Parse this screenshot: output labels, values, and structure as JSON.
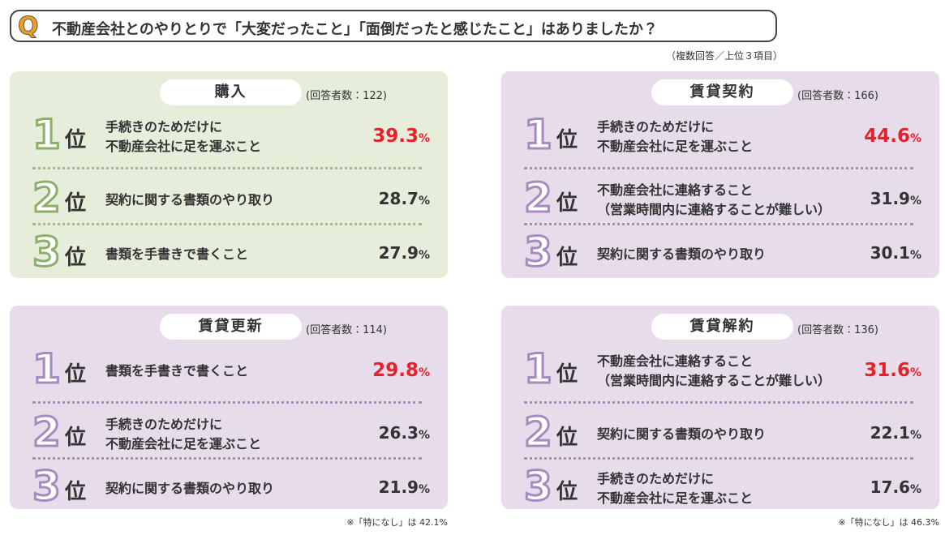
{
  "question": {
    "mark": "Q",
    "text": "不動産会社とのやりとりで「大変だったこと」「面倒だったと感じたこと」はありましたか？",
    "note": "（複数回答／上位３項目）"
  },
  "panels": [
    {
      "title": "購入",
      "respondents": "(回答者数：122)",
      "theme": "green",
      "footnote": null,
      "items": [
        {
          "rank": "1",
          "suffix": "位",
          "lines": [
            "手続きのためだけに",
            "不動産会社に足を運ぶこと"
          ],
          "value": "39.3",
          "unit": "%",
          "highlight": true
        },
        {
          "rank": "2",
          "suffix": "位",
          "lines": [
            "契約に関する書類のやり取り"
          ],
          "value": "28.7",
          "unit": "%",
          "highlight": false
        },
        {
          "rank": "3",
          "suffix": "位",
          "lines": [
            "書類を手書きで書くこと"
          ],
          "value": "27.9",
          "unit": "%",
          "highlight": false
        }
      ]
    },
    {
      "title": "賃貸契約",
      "respondents": "(回答者数：166)",
      "theme": "purple",
      "footnote": null,
      "items": [
        {
          "rank": "1",
          "suffix": "位",
          "lines": [
            "手続きのためだけに",
            "不動産会社に足を運ぶこと"
          ],
          "value": "44.6",
          "unit": "%",
          "highlight": true
        },
        {
          "rank": "2",
          "suffix": "位",
          "lines": [
            "不動産会社に連絡すること",
            "（営業時間内に連絡することが難しい）"
          ],
          "value": "31.9",
          "unit": "%",
          "highlight": false
        },
        {
          "rank": "3",
          "suffix": "位",
          "lines": [
            "契約に関する書類のやり取り"
          ],
          "value": "30.1",
          "unit": "%",
          "highlight": false
        }
      ]
    },
    {
      "title": "賃貸更新",
      "respondents": "(回答者数：114)",
      "theme": "purple",
      "footnote": "※「特になし」は 42.1%",
      "items": [
        {
          "rank": "1",
          "suffix": "位",
          "lines": [
            "書類を手書きで書くこと"
          ],
          "value": "29.8",
          "unit": "%",
          "highlight": true
        },
        {
          "rank": "2",
          "suffix": "位",
          "lines": [
            "手続きのためだけに",
            "不動産会社に足を運ぶこと"
          ],
          "value": "26.3",
          "unit": "%",
          "highlight": false
        },
        {
          "rank": "3",
          "suffix": "位",
          "lines": [
            "契約に関する書類のやり取り"
          ],
          "value": "21.9",
          "unit": "%",
          "highlight": false
        }
      ]
    },
    {
      "title": "賃貸解約",
      "respondents": "(回答者数：136)",
      "theme": "purple",
      "footnote": "※「特になし」は 46.3%",
      "items": [
        {
          "rank": "1",
          "suffix": "位",
          "lines": [
            "不動産会社に連絡すること",
            "（営業時間内に連絡することが難しい）"
          ],
          "value": "31.6",
          "unit": "%",
          "highlight": true
        },
        {
          "rank": "2",
          "suffix": "位",
          "lines": [
            "契約に関する書類のやり取り"
          ],
          "value": "22.1",
          "unit": "%",
          "highlight": false
        },
        {
          "rank": "3",
          "suffix": "位",
          "lines": [
            "手続きのためだけに",
            "不動産会社に足を運ぶこと"
          ],
          "value": "17.6",
          "unit": "%",
          "highlight": false
        }
      ]
    }
  ]
}
